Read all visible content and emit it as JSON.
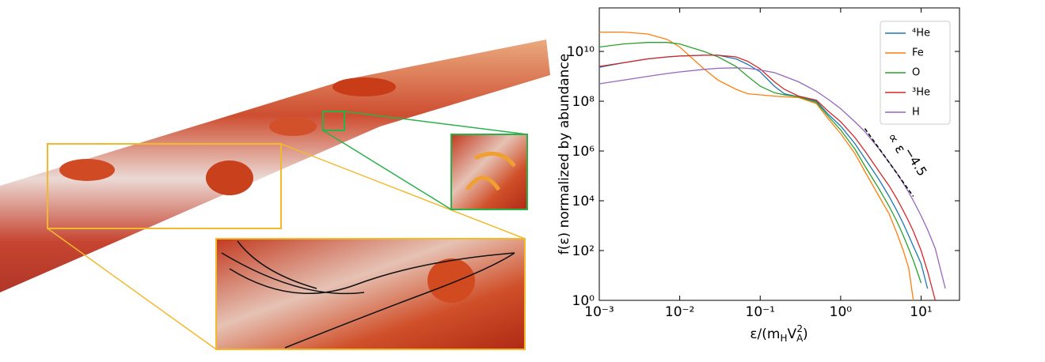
{
  "chart_data": {
    "type": "line",
    "ylabel": "f(ε) normalized by abundance",
    "xlabel": [
      "ε/(m",
      "H",
      "V",
      "A",
      "2",
      ")"
    ],
    "annotation": [
      "∝ ε",
      "−4.5"
    ],
    "guide_line": {
      "x": [
        2,
        8
      ],
      "y": [
        8000000,
        15000
      ]
    },
    "xscale": "log",
    "yscale": "log",
    "legend": "upper right",
    "xlim": [
      0.001,
      30
    ],
    "ylim": [
      1,
      560000000000
    ],
    "xticks": [
      {
        "value": 0.001,
        "label": "10⁻³"
      },
      {
        "value": 0.01,
        "label": "10⁻²"
      },
      {
        "value": 0.1,
        "label": "10⁻¹"
      },
      {
        "value": 1,
        "label": "10⁰"
      },
      {
        "value": 10,
        "label": "10¹"
      }
    ],
    "yticks": [
      {
        "value": 1,
        "label": "10⁰"
      },
      {
        "value": 100,
        "label": "10²"
      },
      {
        "value": 10000,
        "label": "10⁴"
      },
      {
        "value": 1000000,
        "label": "10⁶"
      },
      {
        "value": 100000000,
        "label": "10⁸"
      },
      {
        "value": 10000000000,
        "label": "10¹⁰"
      }
    ],
    "x": [
      0.001,
      0.002,
      0.004,
      0.007,
      0.01,
      0.02,
      0.03,
      0.05,
      0.07,
      0.1,
      0.15,
      0.2,
      0.3,
      0.5,
      0.7,
      1,
      1.5,
      2,
      3,
      4,
      5,
      6,
      7,
      8,
      10,
      12,
      15,
      20
    ],
    "series": [
      {
        "name": "⁴He",
        "color": "#1f77b4",
        "values": [
          2300000000.0,
          3500000000.0,
          5000000000.0,
          6000000000.0,
          6500000000.0,
          7000000000.0,
          7000000000.0,
          5000000000.0,
          3000000000.0,
          1500000000.0,
          400000000.0,
          200000000.0,
          150000000.0,
          100000000.0,
          30000000.0,
          10000000.0,
          2000000.0,
          500000.0,
          70000.0,
          15000.0,
          4000.0,
          1200.0,
          400,
          150,
          30,
          3,
          null,
          null
        ]
      },
      {
        "name": "Fe",
        "color": "#ff7f0e",
        "values": [
          60000000000.0,
          60000000000.0,
          50000000000.0,
          30000000000.0,
          15000000000.0,
          2000000000.0,
          700000000.0,
          300000000.0,
          200000000.0,
          180000000.0,
          160000000.0,
          150000000.0,
          140000000.0,
          80000000.0,
          20000000.0,
          5000000.0,
          800000.0,
          150000.0,
          15000.0,
          3000.0,
          500,
          100,
          20,
          1,
          null,
          null,
          null,
          null
        ]
      },
      {
        "name": "O",
        "color": "#2ca02c",
        "values": [
          15000000000.0,
          20000000000.0,
          23000000000.0,
          23000000000.0,
          20000000000.0,
          10000000000.0,
          6000000000.0,
          2500000000.0,
          1000000000.0,
          400000000.0,
          220000000.0,
          180000000.0,
          150000000.0,
          90000000.0,
          25000000.0,
          7000000.0,
          1200000.0,
          250000.0,
          30000.0,
          6000.0,
          1500.0,
          400,
          120,
          40,
          5,
          null,
          null,
          null
        ]
      },
      {
        "name": "³He",
        "color": "#d62728",
        "values": [
          2500000000.0,
          3500000000.0,
          5000000000.0,
          6000000000.0,
          6500000000.0,
          7000000000.0,
          7000000000.0,
          6000000000.0,
          4000000000.0,
          2000000000.0,
          600000000.0,
          300000000.0,
          160000000.0,
          110000000.0,
          40000000.0,
          15000000.0,
          3500000.0,
          1000000.0,
          150000.0,
          40000.0,
          12000.0,
          4000.0,
          1500.0,
          600,
          100,
          15,
          1,
          null
        ]
      },
      {
        "name": "H",
        "color": "#9467bd",
        "values": [
          500000000.0,
          700000000.0,
          1000000000.0,
          1300000000.0,
          1500000000.0,
          1900000000.0,
          2100000000.0,
          2200000000.0,
          2100000000.0,
          1800000000.0,
          1400000000.0,
          1000000000.0,
          600000000.0,
          250000000.0,
          120000000.0,
          50000000.0,
          15000000.0,
          6000000.0,
          1200000.0,
          350000.0,
          130000.0,
          50000.0,
          22000.0,
          10000.0,
          2500.0,
          700,
          120,
          3
        ]
      }
    ]
  }
}
